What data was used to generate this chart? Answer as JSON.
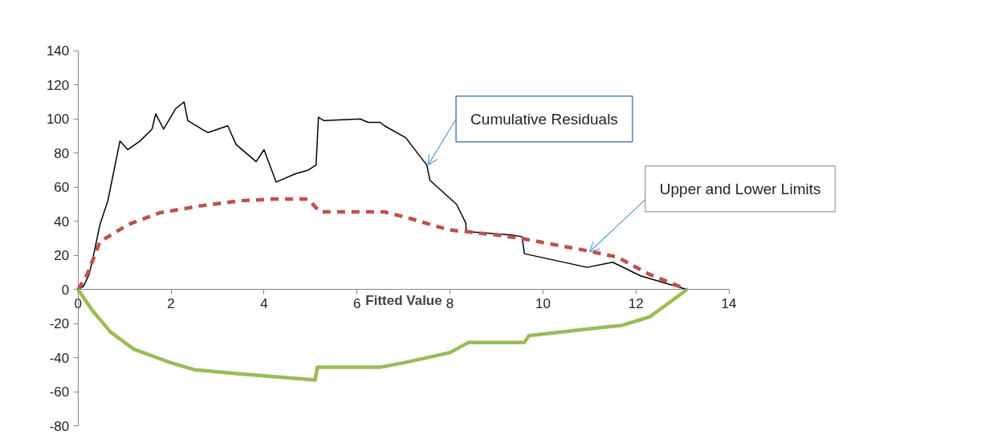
{
  "chart_data": {
    "type": "line",
    "xlabel": "Fitted Value",
    "xlim": [
      0,
      14
    ],
    "xticks": [
      0,
      2,
      4,
      6,
      8,
      10,
      12,
      14
    ],
    "ylim": [
      -80,
      140
    ],
    "yticks": [
      -80,
      -60,
      -40,
      -20,
      0,
      20,
      40,
      60,
      80,
      100,
      120,
      140
    ],
    "grid": false,
    "series": [
      {
        "color": "#000000",
        "line_style": "solid",
        "x": [
          0,
          0.12,
          0.24,
          0.34,
          0.47,
          0.64,
          0.9,
          1.07,
          1.33,
          1.59,
          1.67,
          1.84,
          2.1,
          2.28,
          2.36,
          2.79,
          3.22,
          3.4,
          3.83,
          4.0,
          4.26,
          4.43,
          4.69,
          4.95,
          5.12,
          5.17,
          5.29,
          6.07,
          6.24,
          6.5,
          6.59,
          7.05,
          7.16,
          7.5,
          7.57,
          8.14,
          8.34,
          8.35,
          9.31,
          9.55,
          9.6,
          10.95,
          11.5,
          12.1,
          13.1
        ],
        "values": [
          0,
          2,
          9,
          21,
          38,
          52,
          87,
          82,
          87,
          94,
          103,
          94,
          106,
          110,
          99,
          92,
          96,
          85,
          75,
          82,
          63,
          65,
          68,
          70,
          73,
          101,
          99,
          100,
          98,
          98,
          96,
          89,
          85,
          73,
          64,
          50,
          39,
          34,
          32,
          31,
          21,
          13,
          16,
          8,
          0
        ]
      },
      {
        "color": "#c0504d",
        "line_style": "dashed",
        "x": [
          0,
          0.2,
          0.47,
          1.07,
          1.76,
          2.62,
          3.48,
          4.17,
          4.95,
          5.2,
          6.59,
          7.1,
          7.97,
          9.0,
          9.52,
          10.9,
          11.6,
          12.28,
          13.1
        ],
        "values": [
          0,
          9,
          28,
          38,
          45,
          49,
          52,
          53,
          53,
          45.5,
          45.5,
          42,
          35,
          32,
          30,
          23,
          19,
          9,
          0
        ]
      },
      {
        "color": "#9bbb59",
        "line_style": "solid",
        "x": [
          0,
          0.3,
          0.7,
          1.2,
          2,
          2.5,
          3.3,
          4.2,
          5.1,
          5.15,
          6.5,
          7.0,
          8.0,
          8.4,
          9.6,
          9.7,
          11,
          11.7,
          12.3,
          13.1
        ],
        "values": [
          0,
          -12,
          -25,
          -35,
          -43,
          -47,
          -49,
          -51,
          -53,
          -45.5,
          -45.5,
          -43,
          -37,
          -31,
          -31,
          -27,
          -23,
          -21,
          -16,
          0
        ]
      }
    ],
    "annotations": [
      {
        "text": "Cumulative Residuals",
        "x": 7.53,
        "y": 73
      },
      {
        "text": "Upper and Lower Limits",
        "x": 11.0,
        "y": 22
      }
    ]
  }
}
